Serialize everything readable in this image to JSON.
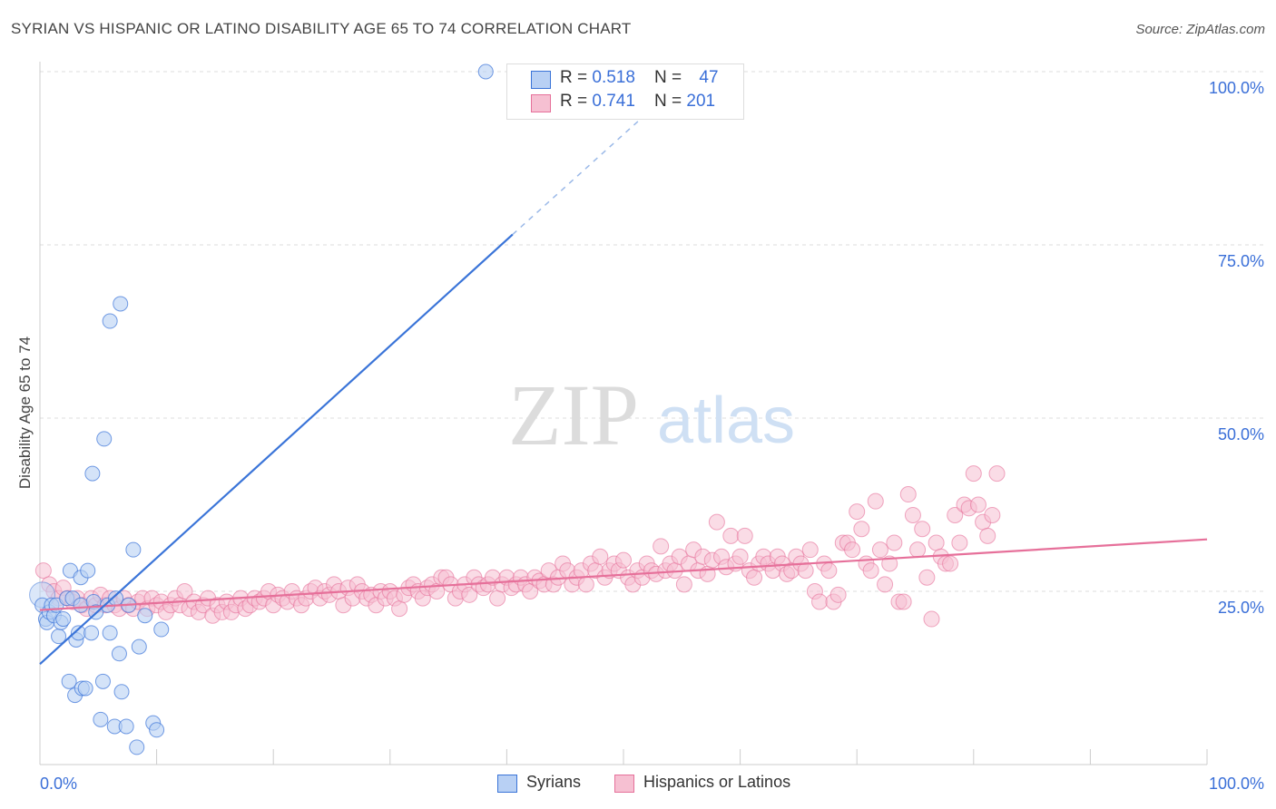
{
  "title": "SYRIAN VS HISPANIC OR LATINO DISABILITY AGE 65 TO 74 CORRELATION CHART",
  "source": "Source: ZipAtlas.com",
  "watermark": {
    "zip": "ZIP",
    "atlas": "atlas"
  },
  "colors": {
    "syrian": "#3a74d8",
    "syrian_fill": "#b8d0f4",
    "hispanic": "#e6709a",
    "hispanic_fill": "#f6c0d2",
    "axis_label": "#3a6fd8"
  },
  "legend": {
    "syrian": {
      "r_label": "R = ",
      "r": "0.518",
      "n_label": "N = ",
      "n": "47"
    },
    "hispanic": {
      "r_label": "R = ",
      "r": "0.741",
      "n_label": "N = ",
      "n": "201"
    }
  },
  "bottom_legend": {
    "syrian": "Syrians",
    "hispanic": "Hispanics or Latinos"
  },
  "chart_data": {
    "type": "scatter",
    "title": "SYRIAN VS HISPANIC OR LATINO DISABILITY AGE 65 TO 74 CORRELATION CHART",
    "xlabel": "",
    "ylabel": "Disability Age 65 to 74",
    "xlim": [
      0,
      100
    ],
    "ylim": [
      0,
      100
    ],
    "x_tick_labels": [
      "0.0%",
      "100.0%"
    ],
    "y_tick_labels": [
      "25.0%",
      "50.0%",
      "75.0%",
      "100.0%"
    ],
    "y_ticks": [
      25,
      50,
      75,
      100
    ],
    "grid": true,
    "legend_position": "top-center",
    "series": [
      {
        "name": "Syrians",
        "r": 0.518,
        "n": 47,
        "trend": {
          "x0": 0,
          "y0": 14.5,
          "x1": 40.5,
          "y1": 76.5,
          "dashed_to": {
            "x": 53,
            "y": 95.5
          }
        },
        "points": [
          [
            0.2,
            23
          ],
          [
            0.5,
            21
          ],
          [
            0.6,
            20.5
          ],
          [
            0.8,
            22
          ],
          [
            1.0,
            23
          ],
          [
            1.2,
            21.5
          ],
          [
            1.4,
            23
          ],
          [
            1.6,
            18.5
          ],
          [
            1.8,
            20.5
          ],
          [
            2.0,
            21
          ],
          [
            2.3,
            24
          ],
          [
            2.5,
            12
          ],
          [
            2.6,
            28
          ],
          [
            2.8,
            24
          ],
          [
            3.0,
            10
          ],
          [
            3.1,
            18
          ],
          [
            3.3,
            19
          ],
          [
            3.5,
            27
          ],
          [
            3.5,
            23
          ],
          [
            3.6,
            11
          ],
          [
            3.9,
            11
          ],
          [
            4.1,
            28
          ],
          [
            4.4,
            19
          ],
          [
            4.6,
            23.5
          ],
          [
            4.8,
            22
          ],
          [
            5.2,
            6.5
          ],
          [
            5.4,
            12
          ],
          [
            5.8,
            23
          ],
          [
            6.0,
            19
          ],
          [
            6.4,
            5.5
          ],
          [
            6.5,
            24
          ],
          [
            6.8,
            16
          ],
          [
            7.0,
            10.5
          ],
          [
            7.4,
            5.5
          ],
          [
            7.6,
            23
          ],
          [
            8.0,
            31
          ],
          [
            8.5,
            17
          ],
          [
            9.0,
            21.5
          ],
          [
            9.7,
            6
          ],
          [
            10.0,
            5
          ],
          [
            10.4,
            19.5
          ],
          [
            8.3,
            2.5
          ],
          [
            5.5,
            47
          ],
          [
            4.5,
            42
          ],
          [
            6.0,
            64
          ],
          [
            6.9,
            66.5
          ],
          [
            38.2,
            100
          ]
        ]
      },
      {
        "name": "Hispanics or Latinos",
        "r": 0.741,
        "n": 201,
        "trend": {
          "x0": 0,
          "y0": 22.3,
          "x1": 100,
          "y1": 32.5
        },
        "points": [
          [
            0.3,
            28
          ],
          [
            0.8,
            26
          ],
          [
            1.2,
            25
          ],
          [
            1.6,
            24
          ],
          [
            2.0,
            25.5
          ],
          [
            2.4,
            24
          ],
          [
            2.8,
            23.5
          ],
          [
            3.2,
            24
          ],
          [
            3.6,
            23
          ],
          [
            4.0,
            22.5
          ],
          [
            4.4,
            24
          ],
          [
            4.8,
            23
          ],
          [
            5.2,
            24.5
          ],
          [
            5.6,
            23
          ],
          [
            6.0,
            24
          ],
          [
            6.4,
            23
          ],
          [
            6.8,
            22.5
          ],
          [
            7.2,
            24
          ],
          [
            7.6,
            23
          ],
          [
            8.0,
            22.5
          ],
          [
            8.4,
            23.5
          ],
          [
            8.8,
            24
          ],
          [
            9.2,
            22.5
          ],
          [
            9.6,
            24
          ],
          [
            10.0,
            23
          ],
          [
            10.4,
            23.5
          ],
          [
            10.8,
            22
          ],
          [
            11.2,
            23
          ],
          [
            11.6,
            24
          ],
          [
            12.0,
            23
          ],
          [
            12.4,
            25
          ],
          [
            12.8,
            22.5
          ],
          [
            13.2,
            23.5
          ],
          [
            13.6,
            22
          ],
          [
            14.0,
            23
          ],
          [
            14.4,
            24
          ],
          [
            14.8,
            21.5
          ],
          [
            15.2,
            23
          ],
          [
            15.6,
            22
          ],
          [
            16.0,
            23.5
          ],
          [
            16.4,
            22
          ],
          [
            16.8,
            23
          ],
          [
            17.2,
            24
          ],
          [
            17.6,
            22.5
          ],
          [
            18.0,
            23
          ],
          [
            18.4,
            24
          ],
          [
            18.8,
            23.5
          ],
          [
            19.2,
            24
          ],
          [
            19.6,
            25
          ],
          [
            20.0,
            23
          ],
          [
            20.4,
            24.5
          ],
          [
            20.8,
            24
          ],
          [
            21.2,
            23.5
          ],
          [
            21.6,
            25
          ],
          [
            22.0,
            24
          ],
          [
            22.4,
            23
          ],
          [
            22.8,
            24
          ],
          [
            23.2,
            25
          ],
          [
            23.6,
            25.5
          ],
          [
            24.0,
            24
          ],
          [
            24.4,
            25
          ],
          [
            24.8,
            24.5
          ],
          [
            25.2,
            26
          ],
          [
            25.6,
            25
          ],
          [
            26.0,
            23
          ],
          [
            26.4,
            25.5
          ],
          [
            26.8,
            24
          ],
          [
            27.2,
            26
          ],
          [
            27.6,
            25
          ],
          [
            28.0,
            24
          ],
          [
            28.4,
            24.5
          ],
          [
            28.8,
            23
          ],
          [
            29.2,
            25
          ],
          [
            29.6,
            24
          ],
          [
            30.0,
            25
          ],
          [
            30.4,
            24
          ],
          [
            30.8,
            22.5
          ],
          [
            31.2,
            24.5
          ],
          [
            31.6,
            25.5
          ],
          [
            32.0,
            26
          ],
          [
            32.4,
            25
          ],
          [
            32.8,
            24
          ],
          [
            33.2,
            25.5
          ],
          [
            33.6,
            26
          ],
          [
            34.0,
            25
          ],
          [
            34.4,
            27
          ],
          [
            34.8,
            27
          ],
          [
            35.2,
            26
          ],
          [
            35.6,
            24
          ],
          [
            36.0,
            25
          ],
          [
            36.4,
            26
          ],
          [
            36.8,
            24.5
          ],
          [
            37.2,
            27
          ],
          [
            37.6,
            26
          ],
          [
            38.0,
            25.5
          ],
          [
            38.4,
            26
          ],
          [
            38.8,
            27
          ],
          [
            39.2,
            24
          ],
          [
            39.6,
            26
          ],
          [
            40.0,
            27
          ],
          [
            40.4,
            25.5
          ],
          [
            40.8,
            26
          ],
          [
            41.2,
            27
          ],
          [
            41.6,
            26
          ],
          [
            42.0,
            25
          ],
          [
            42.4,
            27
          ],
          [
            42.8,
            26.5
          ],
          [
            43.2,
            26
          ],
          [
            43.6,
            28
          ],
          [
            44.0,
            26
          ],
          [
            44.4,
            27
          ],
          [
            44.8,
            29
          ],
          [
            45.2,
            28
          ],
          [
            45.6,
            26
          ],
          [
            46.0,
            27
          ],
          [
            46.4,
            28
          ],
          [
            46.8,
            26
          ],
          [
            47.2,
            29
          ],
          [
            47.6,
            28
          ],
          [
            48.0,
            30
          ],
          [
            48.4,
            27
          ],
          [
            48.8,
            28
          ],
          [
            49.2,
            29
          ],
          [
            49.6,
            28
          ],
          [
            50.0,
            29.5
          ],
          [
            50.4,
            27
          ],
          [
            50.8,
            26
          ],
          [
            51.2,
            28
          ],
          [
            51.6,
            27
          ],
          [
            52.0,
            29
          ],
          [
            52.4,
            28
          ],
          [
            52.8,
            27.5
          ],
          [
            53.2,
            31.5
          ],
          [
            53.6,
            28
          ],
          [
            54.0,
            29
          ],
          [
            54.4,
            28
          ],
          [
            54.8,
            30
          ],
          [
            55.2,
            26
          ],
          [
            55.6,
            29
          ],
          [
            56.0,
            31
          ],
          [
            56.4,
            28
          ],
          [
            56.8,
            30
          ],
          [
            57.2,
            27.5
          ],
          [
            57.6,
            29.5
          ],
          [
            58.0,
            35
          ],
          [
            58.4,
            30
          ],
          [
            58.8,
            28.5
          ],
          [
            59.2,
            33
          ],
          [
            59.6,
            29
          ],
          [
            60.0,
            30
          ],
          [
            60.4,
            33
          ],
          [
            60.8,
            28
          ],
          [
            61.2,
            27
          ],
          [
            61.6,
            29
          ],
          [
            62.0,
            30
          ],
          [
            62.4,
            29
          ],
          [
            62.8,
            28
          ],
          [
            63.2,
            30
          ],
          [
            63.6,
            29
          ],
          [
            64.0,
            27.5
          ],
          [
            64.4,
            28
          ],
          [
            64.8,
            30
          ],
          [
            65.2,
            29
          ],
          [
            65.6,
            28
          ],
          [
            66.0,
            31
          ],
          [
            66.4,
            25
          ],
          [
            66.8,
            23.5
          ],
          [
            67.2,
            29
          ],
          [
            67.6,
            28
          ],
          [
            68.0,
            23.5
          ],
          [
            68.4,
            24.5
          ],
          [
            68.8,
            32
          ],
          [
            69.2,
            32
          ],
          [
            69.6,
            31
          ],
          [
            70.0,
            36.5
          ],
          [
            70.4,
            34
          ],
          [
            70.8,
            29
          ],
          [
            71.2,
            28
          ],
          [
            71.6,
            38
          ],
          [
            72.0,
            31
          ],
          [
            72.4,
            26
          ],
          [
            72.8,
            29
          ],
          [
            73.2,
            32
          ],
          [
            73.6,
            23.5
          ],
          [
            74.0,
            23.5
          ],
          [
            74.4,
            39
          ],
          [
            74.8,
            36
          ],
          [
            75.2,
            31
          ],
          [
            75.6,
            34
          ],
          [
            76.0,
            27
          ],
          [
            76.4,
            21
          ],
          [
            76.8,
            32
          ],
          [
            77.2,
            30
          ],
          [
            77.6,
            29
          ],
          [
            78.0,
            29
          ],
          [
            78.4,
            36
          ],
          [
            78.8,
            32
          ],
          [
            79.2,
            37.5
          ],
          [
            79.6,
            37
          ],
          [
            80.0,
            42
          ],
          [
            80.4,
            37.5
          ],
          [
            80.8,
            35
          ],
          [
            81.2,
            33
          ],
          [
            81.6,
            36
          ],
          [
            82.0,
            42
          ]
        ]
      }
    ]
  }
}
